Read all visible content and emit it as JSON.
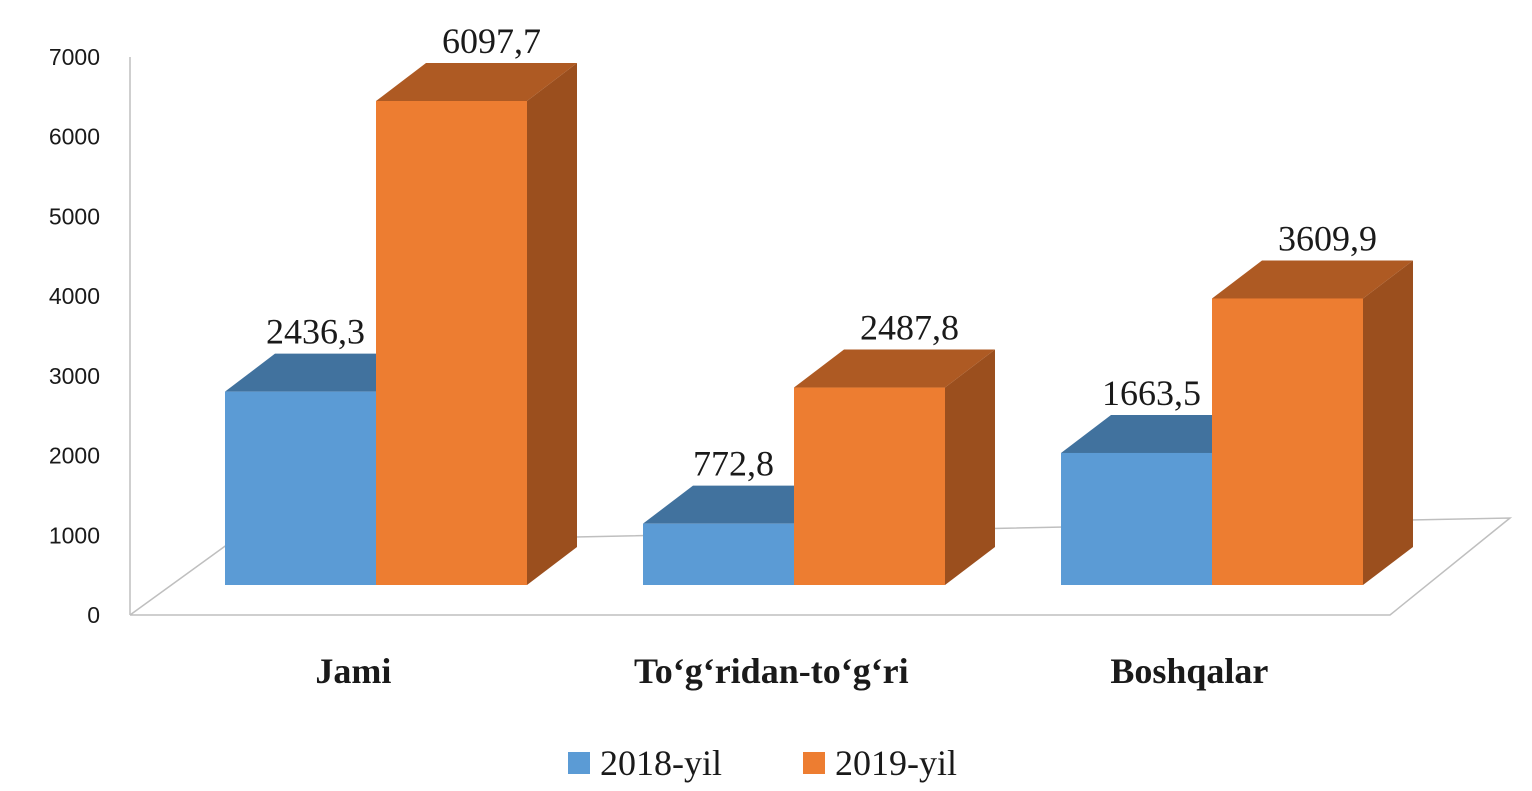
{
  "chart_data": {
    "type": "bar",
    "style": "3d-clustered-column",
    "categories": [
      "Jami",
      "To‘g‘ridan-to‘g‘ri",
      "Boshqalar"
    ],
    "series": [
      {
        "name": "2018-yil",
        "values": [
          2436.3,
          772.8,
          1663.5
        ],
        "labels": [
          "2436,3",
          "772,8",
          "1663,5"
        ],
        "color": "#5b9bd5",
        "top_color": "#41729e"
      },
      {
        "name": "2019-yil",
        "values": [
          6097.7,
          2487.8,
          3609.9
        ],
        "labels": [
          "6097,7",
          "2487,8",
          "3609,9"
        ],
        "color": "#ed7d31",
        "top_color": "#ae5a23",
        "side_color": "#9b4f1e"
      }
    ],
    "yticks": [
      "0",
      "1000",
      "2000",
      "3000",
      "4000",
      "5000",
      "6000",
      "7000"
    ],
    "ylim": [
      0,
      7000
    ],
    "legend": "bottom",
    "grid": false
  }
}
